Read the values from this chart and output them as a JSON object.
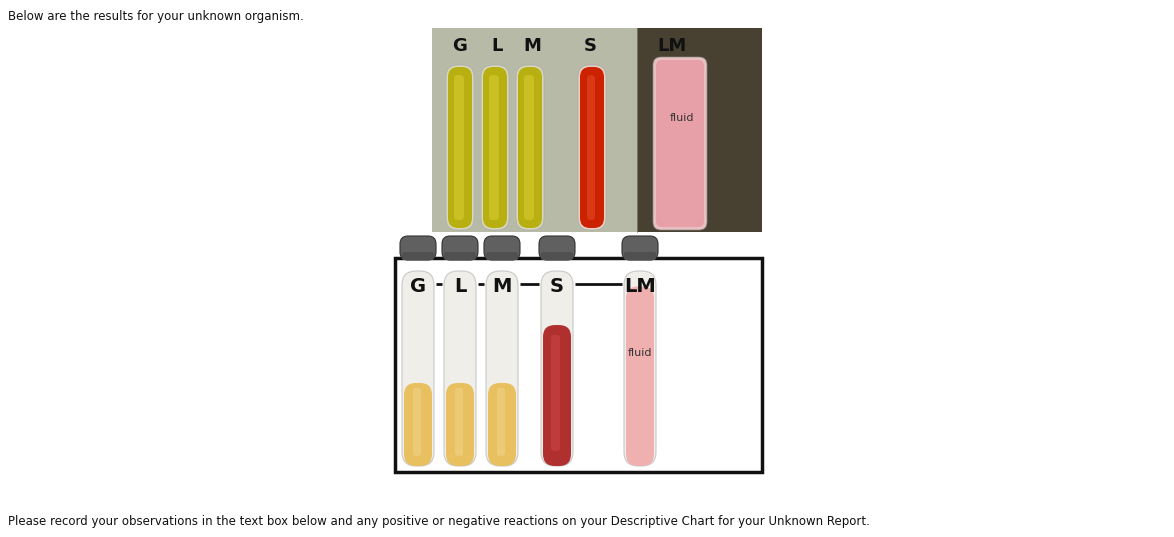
{
  "header_text": "Below are the results for your unknown organism.",
  "footer_text": "Please record your observations in the text box below and any positive or negative reactions on your Descriptive Chart for your Unknown Report.",
  "diagram_labels": [
    "G",
    "L",
    "M",
    "S",
    "LM"
  ],
  "tube_liquid_colors": [
    "#e8c060",
    "#e8c060",
    "#e8c060",
    "#b03030",
    "#f0b0b0"
  ],
  "tube_body_color": "#f0eee8",
  "lm_tube_full_color": "#f0b0b0",
  "cap_color": "#606060",
  "cap_dark": "#444444",
  "dash_color": "#111111",
  "box_border_color": "#111111",
  "background_color": "#ffffff",
  "photo_bg_left": "#c8c8b0",
  "photo_bg_right": "#383020",
  "photo_yellow_fill": "#c0b020",
  "photo_yellow_top": "#d8d090",
  "photo_red_fill": "#cc2200",
  "photo_red_top": "#e09080",
  "photo_pink_fill": "#e8a0a0",
  "photo_pink_body": "#e8b8b8",
  "fig_width": 11.74,
  "fig_height": 5.37,
  "header_fontsize": 8.5,
  "footer_fontsize": 8.5,
  "label_fontsize": 14,
  "fluid_fontsize": 8,
  "photo_label_fontsize": 13
}
